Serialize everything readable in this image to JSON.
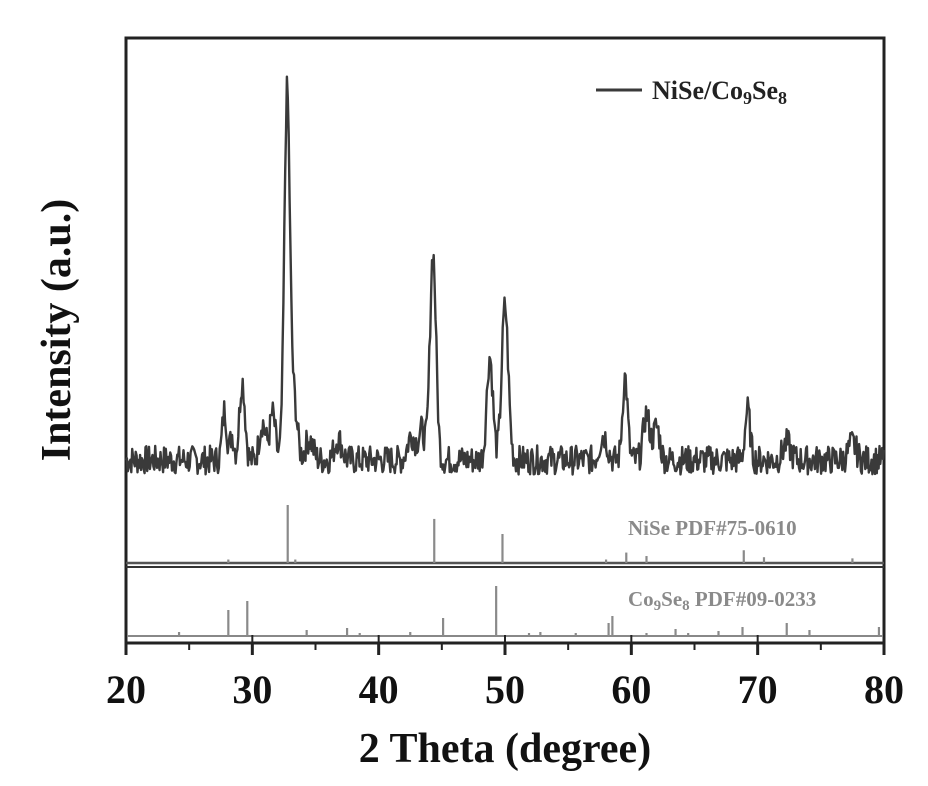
{
  "chart_data": {
    "type": "line",
    "xlabel": "2 Theta (degree)",
    "ylabel": "Intensity (a.u.)",
    "xlim": [
      20,
      80
    ],
    "x_ticks": [
      20,
      30,
      40,
      50,
      60,
      70,
      80
    ],
    "y_ticks_shown": false,
    "grid": false,
    "legend": {
      "placement": "top-right",
      "entries": [
        {
          "prefix": "NiSe/Co",
          "sub1": "9",
          "mid": "Se",
          "sub2": "8"
        }
      ]
    },
    "color": "#3a3a3a",
    "ref_color": "#8a8a8a",
    "series": [
      {
        "name_parts": {
          "prefix": "NiSe/Co",
          "sub1": "9",
          "mid": "Se",
          "sub2": "8"
        },
        "baseline": 10,
        "noise": 3.5,
        "peaks": [
          {
            "x": 27.8,
            "h": 12,
            "w": 0.18
          },
          {
            "x": 28.4,
            "h": 6,
            "w": 0.15
          },
          {
            "x": 29.2,
            "h": 19,
            "w": 0.22
          },
          {
            "x": 30.8,
            "h": 9,
            "w": 0.25
          },
          {
            "x": 31.6,
            "h": 11,
            "w": 0.22
          },
          {
            "x": 32.75,
            "h": 88,
            "w": 0.22
          },
          {
            "x": 33.3,
            "h": 14,
            "w": 0.25
          },
          {
            "x": 34.5,
            "h": 5,
            "w": 0.3
          },
          {
            "x": 36.8,
            "h": 5,
            "w": 0.3
          },
          {
            "x": 42.6,
            "h": 6,
            "w": 0.3
          },
          {
            "x": 43.4,
            "h": 7,
            "w": 0.25
          },
          {
            "x": 44.3,
            "h": 50,
            "w": 0.24
          },
          {
            "x": 48.8,
            "h": 25,
            "w": 0.24
          },
          {
            "x": 50.0,
            "h": 37,
            "w": 0.26
          },
          {
            "x": 57.8,
            "h": 6,
            "w": 0.3
          },
          {
            "x": 59.5,
            "h": 20,
            "w": 0.2
          },
          {
            "x": 61.2,
            "h": 11,
            "w": 0.25
          },
          {
            "x": 62.0,
            "h": 8,
            "w": 0.25
          },
          {
            "x": 69.2,
            "h": 12,
            "w": 0.2
          },
          {
            "x": 72.3,
            "h": 4,
            "w": 0.3
          },
          {
            "x": 77.5,
            "h": 4,
            "w": 0.3
          }
        ]
      }
    ],
    "references": [
      {
        "label_parts": {
          "prefix": "NiSe PDF#75-0610",
          "sub1": "",
          "mid": "",
          "sub2": ""
        },
        "lines": [
          {
            "x": 28.1,
            "h": 6
          },
          {
            "x": 32.8,
            "h": 100
          },
          {
            "x": 33.4,
            "h": 6
          },
          {
            "x": 44.4,
            "h": 76
          },
          {
            "x": 49.8,
            "h": 50
          },
          {
            "x": 58.0,
            "h": 6
          },
          {
            "x": 59.6,
            "h": 18
          },
          {
            "x": 61.2,
            "h": 12
          },
          {
            "x": 68.9,
            "h": 22
          },
          {
            "x": 70.5,
            "h": 10
          },
          {
            "x": 77.5,
            "h": 8
          }
        ]
      },
      {
        "label_parts": {
          "prefix": "Co",
          "sub1": "9",
          "mid": "Se",
          "sub2": "8 PDF#09-0233"
        },
        "lines": [
          {
            "x": 24.2,
            "h": 8
          },
          {
            "x": 28.1,
            "h": 52
          },
          {
            "x": 29.6,
            "h": 70
          },
          {
            "x": 34.3,
            "h": 12
          },
          {
            "x": 37.5,
            "h": 16
          },
          {
            "x": 38.5,
            "h": 6
          },
          {
            "x": 42.5,
            "h": 8
          },
          {
            "x": 45.1,
            "h": 36
          },
          {
            "x": 49.3,
            "h": 100
          },
          {
            "x": 51.9,
            "h": 6
          },
          {
            "x": 52.8,
            "h": 8
          },
          {
            "x": 55.6,
            "h": 6
          },
          {
            "x": 58.2,
            "h": 26
          },
          {
            "x": 58.5,
            "h": 40
          },
          {
            "x": 61.2,
            "h": 6
          },
          {
            "x": 63.5,
            "h": 14
          },
          {
            "x": 64.5,
            "h": 6
          },
          {
            "x": 66.9,
            "h": 10
          },
          {
            "x": 68.8,
            "h": 18
          },
          {
            "x": 72.3,
            "h": 26
          },
          {
            "x": 74.1,
            "h": 12
          },
          {
            "x": 79.6,
            "h": 18
          }
        ]
      }
    ]
  }
}
